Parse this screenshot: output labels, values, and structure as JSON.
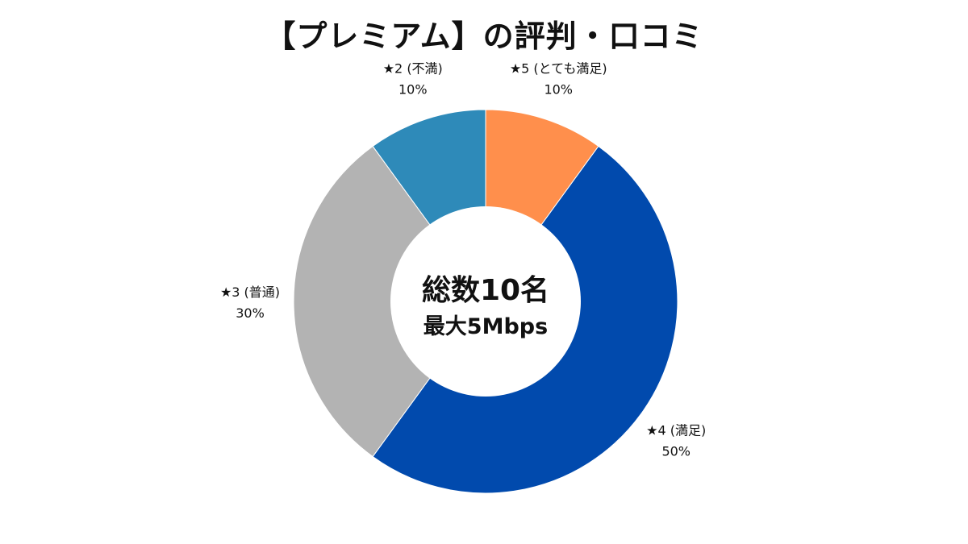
{
  "chart_data": {
    "type": "pie",
    "title": "【プレミアム】の評判・口コミ",
    "center_text": {
      "main": "総数10名",
      "sub": "最大5Mbps"
    },
    "slices": [
      {
        "label": "★5 (とても満足)",
        "value": 10,
        "percent_label": "10%",
        "color": "#FF8F4C"
      },
      {
        "label": "★4 (満足)",
        "value": 50,
        "percent_label": "50%",
        "color": "#014AAD"
      },
      {
        "label": "★3 (普通)",
        "value": 30,
        "percent_label": "30%",
        "color": "#B3B3B3"
      },
      {
        "label": "★2 (不満)",
        "value": 10,
        "percent_label": "10%",
        "color": "#2E8AB9"
      }
    ],
    "start_angle": "12 o'clock",
    "direction": "clockwise",
    "donut": true,
    "legend": "none"
  }
}
